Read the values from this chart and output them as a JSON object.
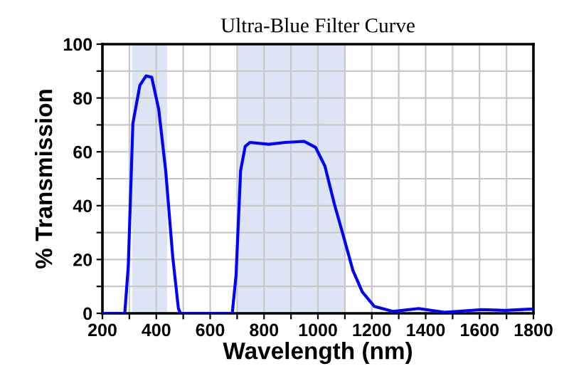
{
  "chart_data": {
    "type": "line",
    "title": "Ultra-Blue Filter Curve",
    "xlabel": "Wavelength (nm)",
    "ylabel": "% Transmission",
    "series": [
      {
        "color": "#0000ff",
        "x": [
          200,
          283,
          296,
          313,
          339,
          362,
          383,
          409,
          435,
          461,
          482,
          490,
          682,
          696,
          713,
          730,
          748,
          817,
          878,
          948,
          991,
          1026,
          1061,
          1096,
          1130,
          1165,
          1209,
          1278,
          1374,
          1470,
          1609,
          1696,
          1800
        ],
        "values": [
          0,
          0,
          17.6,
          70.5,
          84.7,
          88.2,
          87.7,
          75.8,
          52.9,
          21,
          1.8,
          0,
          0,
          14,
          53,
          62,
          63.5,
          62.8,
          63.5,
          63.9,
          61.7,
          54.7,
          40.6,
          28.2,
          15.9,
          7.9,
          2.6,
          0.7,
          1.8,
          0.4,
          1.4,
          1.1,
          1.6
        ]
      }
    ],
    "bands": [
      {
        "axis": "x",
        "from": 310,
        "to": 440,
        "color": "#dce4f5"
      },
      {
        "axis": "x",
        "from": 700,
        "to": 1100,
        "color": "#dce4f5"
      }
    ],
    "xlim": [
      200,
      1800
    ],
    "ylim": [
      0,
      100
    ],
    "xticks": [
      200,
      {
        "value": 300,
        "label": null
      },
      400,
      {
        "value": 500,
        "label": null
      },
      600,
      {
        "value": 700,
        "label": null
      },
      800,
      {
        "value": 900,
        "label": null
      },
      1000,
      {
        "value": 1100,
        "label": null
      },
      1200,
      {
        "value": 1300,
        "label": null
      },
      1400,
      {
        "value": 1500,
        "label": null
      },
      1600,
      {
        "value": 1700,
        "label": null
      },
      1800
    ],
    "yticks": [
      0,
      {
        "value": 10,
        "label": null
      },
      20,
      {
        "value": 30,
        "label": null
      },
      40,
      {
        "value": 50,
        "label": null
      },
      60,
      {
        "value": 70,
        "label": null
      },
      80,
      {
        "value": 90,
        "label": null
      },
      100
    ],
    "grid": true,
    "marker": "none",
    "line_style": "solid"
  }
}
